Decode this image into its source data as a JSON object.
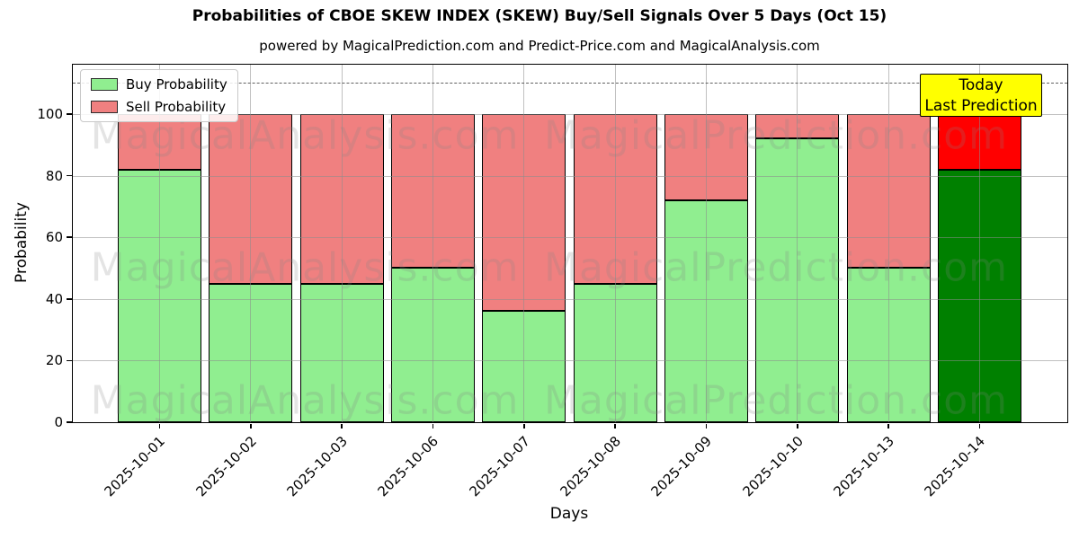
{
  "chart_data": {
    "type": "bar",
    "stacked": true,
    "title": "Probabilities of CBOE SKEW INDEX (SKEW) Buy/Sell Signals Over 5 Days (Oct 15)",
    "subtitle": "powered by MagicalPrediction.com and Predict-Price.com and MagicalAnalysis.com",
    "xlabel": "Days",
    "ylabel": "Probability",
    "ylim": [
      0,
      116
    ],
    "yticks": [
      0,
      20,
      40,
      60,
      80,
      100
    ],
    "dashed_line_y": 110,
    "grid": true,
    "legend_position": "upper-left",
    "categories": [
      "2025-10-01",
      "2025-10-02",
      "2025-10-03",
      "2025-10-06",
      "2025-10-07",
      "2025-10-08",
      "2025-10-09",
      "2025-10-10",
      "2025-10-13",
      "2025-10-14"
    ],
    "series": [
      {
        "name": "Buy Probability",
        "color": "#90EE90",
        "highlight_color": "#008000",
        "values": [
          82,
          45,
          45,
          50,
          36,
          45,
          72,
          92,
          50,
          82
        ]
      },
      {
        "name": "Sell Probability",
        "color": "#F08080",
        "highlight_color": "#FF0000",
        "values": [
          18,
          55,
          55,
          50,
          64,
          55,
          28,
          8,
          50,
          18
        ]
      }
    ],
    "highlight_index": 9,
    "annotation": {
      "line1": "Today",
      "line2": "Last Prediction",
      "bg_color": "#FFFF00",
      "text_color": "#000000"
    },
    "watermarks": {
      "left_text": "MagicalAnalysis.com",
      "right_text": "MagicalPrediction.com",
      "rows": 3
    }
  }
}
